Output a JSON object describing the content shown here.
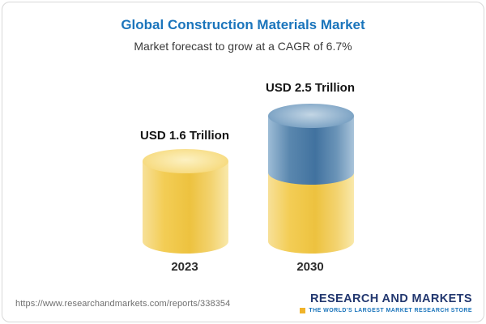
{
  "header": {
    "title": "Global Construction Materials Market",
    "subtitle": "Market forecast to grow at a CAGR of 6.7%"
  },
  "chart_data": {
    "type": "bar",
    "variant": "3d-cylinder",
    "categories": [
      "2023",
      "2030"
    ],
    "values": [
      1.6,
      2.5
    ],
    "value_labels": [
      "USD 1.6 Trillion",
      "USD 2.5 Trillion"
    ],
    "unit": "USD Trillion",
    "cagr": "6.7%",
    "title": "Global Construction Materials Market",
    "subtitle": "Market forecast to grow at a CAGR of 6.7%",
    "legend": "none",
    "grid": false,
    "series_notes": "2030 bar drawn as yellow base (2023 level) with blue growth segment on top",
    "colors": {
      "bar_base": "#EFC341",
      "bar_growth": "#41729F",
      "title_text": "#1B75BC"
    }
  },
  "footer": {
    "url": "https://www.researchandmarkets.com/reports/338354",
    "logo": "RESEARCH AND MARKETS",
    "tagline": "THE WORLD'S LARGEST MARKET RESEARCH STORE"
  }
}
